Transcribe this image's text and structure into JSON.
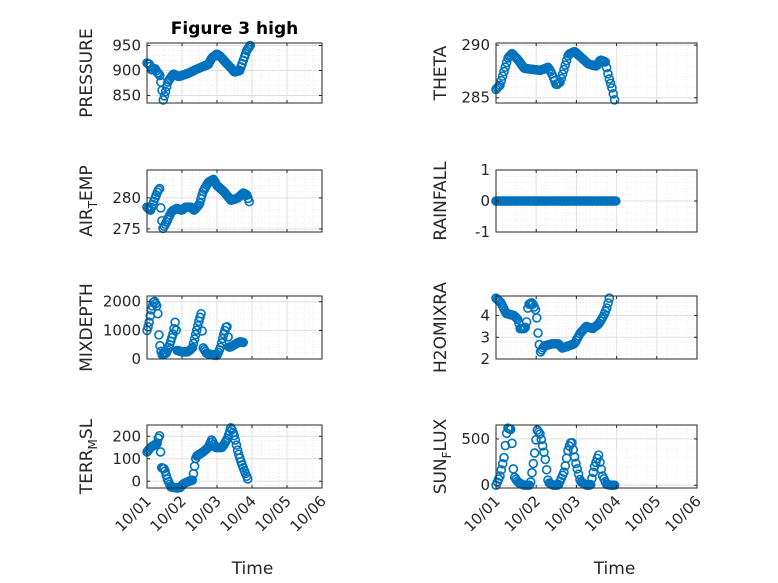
{
  "figure_title": "Figure 3 high",
  "colors": {
    "marker": "#0072BD",
    "grid_major": "#e0e0e0",
    "grid_minor": "#ececec",
    "axis": "#262626"
  },
  "chart_data": [
    {
      "type": "scatter",
      "name": "pressure",
      "ylabel": "PRESSURE",
      "ylabel_sub": "",
      "ylim": [
        835,
        955
      ],
      "yticks": [
        850,
        900,
        950
      ],
      "ytick_labels": [
        "850",
        "900",
        "950"
      ],
      "xlim": [
        0,
        5
      ],
      "xticks": [
        0,
        1,
        2,
        3,
        4,
        5
      ],
      "xtick_labels": [],
      "title": "Figure 3 high",
      "xlabel": "",
      "knots": [
        [
          0,
          915
        ],
        [
          0.08,
          912
        ],
        [
          0.14,
          900
        ],
        [
          0.22,
          905
        ],
        [
          0.3,
          895
        ],
        [
          0.36,
          892
        ],
        [
          0.42,
          868
        ],
        [
          0.46,
          840
        ],
        [
          0.52,
          855
        ],
        [
          0.6,
          878
        ],
        [
          0.75,
          893
        ],
        [
          0.9,
          888
        ],
        [
          1.0,
          890
        ],
        [
          1.2,
          895
        ],
        [
          1.4,
          902
        ],
        [
          1.6,
          908
        ],
        [
          1.75,
          912
        ],
        [
          1.85,
          925
        ],
        [
          2.0,
          933
        ],
        [
          2.1,
          928
        ],
        [
          2.25,
          916
        ],
        [
          2.4,
          905
        ],
        [
          2.5,
          897
        ],
        [
          2.65,
          900
        ],
        [
          2.75,
          920
        ],
        [
          2.85,
          940
        ],
        [
          2.95,
          950
        ]
      ]
    },
    {
      "type": "scatter",
      "name": "theta",
      "ylabel": "THETA",
      "ylabel_sub": "",
      "ylim": [
        284.5,
        290.2
      ],
      "yticks": [
        285,
        290
      ],
      "ytick_labels": [
        "285",
        "290"
      ],
      "xlim": [
        0,
        5
      ],
      "xticks": [
        0,
        1,
        2,
        3,
        4,
        5
      ],
      "xtick_labels": [],
      "title": "",
      "xlabel": "",
      "knots": [
        [
          0,
          285.8
        ],
        [
          0.1,
          286.2
        ],
        [
          0.2,
          287.5
        ],
        [
          0.3,
          288.8
        ],
        [
          0.4,
          289.2
        ],
        [
          0.55,
          288.6
        ],
        [
          0.7,
          287.8
        ],
        [
          0.9,
          287.7
        ],
        [
          1.1,
          287.6
        ],
        [
          1.3,
          287.9
        ],
        [
          1.4,
          287.2
        ],
        [
          1.5,
          286.2
        ],
        [
          1.6,
          286.5
        ],
        [
          1.7,
          287.8
        ],
        [
          1.8,
          289.1
        ],
        [
          1.95,
          289.4
        ],
        [
          2.1,
          288.9
        ],
        [
          2.3,
          288.2
        ],
        [
          2.5,
          288.0
        ],
        [
          2.6,
          288.6
        ],
        [
          2.72,
          288.4
        ],
        [
          2.8,
          287.0
        ],
        [
          2.88,
          286.0
        ],
        [
          2.95,
          284.8
        ]
      ]
    },
    {
      "type": "scatter",
      "name": "air_temp",
      "ylabel": "AIR",
      "ylabel_sub": "T",
      "ylabel_tail": "EMP",
      "ylim": [
        274.5,
        284.5
      ],
      "yticks": [
        275,
        280
      ],
      "ytick_labels": [
        "275",
        "280"
      ],
      "xlim": [
        0,
        5
      ],
      "xticks": [
        0,
        1,
        2,
        3,
        4,
        5
      ],
      "xtick_labels": [],
      "title": "",
      "xlabel": "",
      "knots": [
        [
          0,
          278.5
        ],
        [
          0.1,
          278.0
        ],
        [
          0.2,
          279.5
        ],
        [
          0.3,
          281.0
        ],
        [
          0.36,
          281.6
        ],
        [
          0.4,
          277.8
        ],
        [
          0.45,
          275.0
        ],
        [
          0.55,
          276.0
        ],
        [
          0.7,
          277.8
        ],
        [
          0.85,
          278.3
        ],
        [
          1.0,
          278.0
        ],
        [
          1.1,
          278.5
        ],
        [
          1.25,
          278.5
        ],
        [
          1.35,
          278.0
        ],
        [
          1.5,
          279.0
        ],
        [
          1.6,
          281.0
        ],
        [
          1.75,
          282.5
        ],
        [
          1.9,
          283.0
        ],
        [
          2.0,
          282.0
        ],
        [
          2.2,
          281.0
        ],
        [
          2.4,
          279.6
        ],
        [
          2.6,
          280.0
        ],
        [
          2.75,
          280.8
        ],
        [
          2.85,
          280.5
        ],
        [
          2.92,
          279.4
        ]
      ]
    },
    {
      "type": "scatter",
      "name": "rainfall",
      "ylabel": "RAINFALL",
      "ylabel_sub": "",
      "ylim": [
        -1,
        1
      ],
      "yticks": [
        -1,
        0,
        1
      ],
      "ytick_labels": [
        "-1",
        "0",
        "1"
      ],
      "xlim": [
        0,
        5
      ],
      "xticks": [
        0,
        1,
        2,
        3,
        4,
        5
      ],
      "xtick_labels": [],
      "title": "",
      "xlabel": "",
      "knots": [
        [
          0,
          0
        ],
        [
          2.98,
          0
        ]
      ]
    },
    {
      "type": "scatter",
      "name": "mixdepth",
      "ylabel": "MIXDEPTH",
      "ylabel_sub": "",
      "ylim": [
        0,
        2200
      ],
      "yticks": [
        0,
        1000,
        2000
      ],
      "ytick_labels": [
        "0",
        "1000",
        "2000"
      ],
      "xlim": [
        0,
        5
      ],
      "xticks": [
        0,
        1,
        2,
        3,
        4,
        5
      ],
      "xtick_labels": [],
      "title": "",
      "xlabel": "",
      "knots": [
        [
          0,
          1000
        ],
        [
          0.05,
          1200
        ],
        [
          0.12,
          1700
        ],
        [
          0.2,
          2050
        ],
        [
          0.3,
          1800
        ],
        [
          0.35,
          600
        ],
        [
          0.42,
          150
        ],
        [
          0.55,
          200
        ],
        [
          0.65,
          500
        ],
        [
          0.75,
          900
        ],
        [
          0.82,
          1400
        ],
        [
          0.86,
          300
        ],
        [
          1.0,
          250
        ],
        [
          1.15,
          250
        ],
        [
          1.22,
          300
        ],
        [
          1.3,
          400
        ],
        [
          1.4,
          900
        ],
        [
          1.5,
          1400
        ],
        [
          1.55,
          1600
        ],
        [
          1.6,
          400
        ],
        [
          1.7,
          200
        ],
        [
          1.85,
          150
        ],
        [
          2.0,
          120
        ],
        [
          2.1,
          400
        ],
        [
          2.2,
          900
        ],
        [
          2.28,
          1200
        ],
        [
          2.35,
          400
        ],
        [
          2.5,
          500
        ],
        [
          2.65,
          600
        ],
        [
          2.75,
          580
        ]
      ]
    },
    {
      "type": "scatter",
      "name": "h2omixra",
      "ylabel": "H2OMIXRA",
      "ylabel_sub": "",
      "ylim": [
        2,
        4.9
      ],
      "yticks": [
        2,
        3,
        4
      ],
      "ytick_labels": [
        "2",
        "3",
        "4"
      ],
      "xlim": [
        0,
        5
      ],
      "xticks": [
        0,
        1,
        2,
        3,
        4,
        5
      ],
      "xtick_labels": [],
      "title": "",
      "xlabel": "",
      "knots": [
        [
          0,
          4.8
        ],
        [
          0.12,
          4.6
        ],
        [
          0.25,
          4.1
        ],
        [
          0.45,
          4.0
        ],
        [
          0.55,
          3.8
        ],
        [
          0.6,
          3.4
        ],
        [
          0.7,
          3.4
        ],
        [
          0.75,
          3.5
        ],
        [
          0.8,
          4.5
        ],
        [
          0.9,
          4.6
        ],
        [
          1.0,
          4.2
        ],
        [
          1.05,
          3.1
        ],
        [
          1.1,
          2.3
        ],
        [
          1.2,
          2.6
        ],
        [
          1.4,
          2.7
        ],
        [
          1.55,
          2.7
        ],
        [
          1.65,
          2.5
        ],
        [
          1.8,
          2.6
        ],
        [
          1.95,
          2.7
        ],
        [
          2.1,
          3.2
        ],
        [
          2.25,
          3.5
        ],
        [
          2.4,
          3.4
        ],
        [
          2.55,
          3.6
        ],
        [
          2.65,
          3.9
        ],
        [
          2.75,
          4.3
        ],
        [
          2.82,
          4.8
        ]
      ]
    },
    {
      "type": "scatter",
      "name": "terr_msl",
      "ylabel": "TERR",
      "ylabel_sub": "M",
      "ylabel_tail": "SL",
      "ylim": [
        -30,
        250
      ],
      "yticks": [
        0,
        100,
        200
      ],
      "ytick_labels": [
        "0",
        "100",
        "200"
      ],
      "xlim": [
        0,
        5
      ],
      "xticks": [
        0,
        1,
        2,
        3,
        4,
        5
      ],
      "xtick_labels": [
        "10/01",
        "10/02",
        "10/03",
        "10/04",
        "10/05",
        "10/06"
      ],
      "title": "",
      "xlabel": "Time",
      "knots": [
        [
          0,
          130
        ],
        [
          0.1,
          150
        ],
        [
          0.2,
          160
        ],
        [
          0.3,
          170
        ],
        [
          0.35,
          215
        ],
        [
          0.42,
          60
        ],
        [
          0.5,
          55
        ],
        [
          0.58,
          10
        ],
        [
          0.68,
          -25
        ],
        [
          0.85,
          -30
        ],
        [
          0.95,
          -28
        ],
        [
          1.05,
          -10
        ],
        [
          1.2,
          0
        ],
        [
          1.3,
          5
        ],
        [
          1.4,
          110
        ],
        [
          1.6,
          130
        ],
        [
          1.75,
          150
        ],
        [
          1.85,
          185
        ],
        [
          1.95,
          150
        ],
        [
          2.15,
          150
        ],
        [
          2.3,
          190
        ],
        [
          2.4,
          240
        ],
        [
          2.5,
          200
        ],
        [
          2.6,
          130
        ],
        [
          2.7,
          80
        ],
        [
          2.8,
          40
        ],
        [
          2.88,
          10
        ]
      ]
    },
    {
      "type": "scatter",
      "name": "sun_flux",
      "ylabel": "SUN",
      "ylabel_sub": "F",
      "ylabel_tail": "LUX",
      "ylim": [
        -30,
        650
      ],
      "yticks": [
        0,
        500
      ],
      "ytick_labels": [
        "0",
        "500"
      ],
      "xlim": [
        0,
        5
      ],
      "xticks": [
        0,
        1,
        2,
        3,
        4,
        5
      ],
      "xtick_labels": [
        "10/01",
        "10/02",
        "10/03",
        "10/04",
        "10/05",
        "10/06"
      ],
      "title": "",
      "xlabel": "Time",
      "knots": [
        [
          0,
          0
        ],
        [
          0.1,
          100
        ],
        [
          0.2,
          300
        ],
        [
          0.28,
          620
        ],
        [
          0.38,
          600
        ],
        [
          0.44,
          100
        ],
        [
          0.55,
          30
        ],
        [
          0.7,
          0
        ],
        [
          0.85,
          0
        ],
        [
          0.95,
          300
        ],
        [
          1.02,
          600
        ],
        [
          1.1,
          550
        ],
        [
          1.22,
          300
        ],
        [
          1.3,
          30
        ],
        [
          1.42,
          0
        ],
        [
          1.55,
          0
        ],
        [
          1.7,
          150
        ],
        [
          1.8,
          400
        ],
        [
          1.88,
          480
        ],
        [
          1.98,
          250
        ],
        [
          2.1,
          40
        ],
        [
          2.25,
          0
        ],
        [
          2.35,
          0
        ],
        [
          2.45,
          200
        ],
        [
          2.55,
          330
        ],
        [
          2.65,
          100
        ],
        [
          2.75,
          10
        ],
        [
          2.85,
          0
        ],
        [
          2.95,
          0
        ]
      ]
    }
  ]
}
